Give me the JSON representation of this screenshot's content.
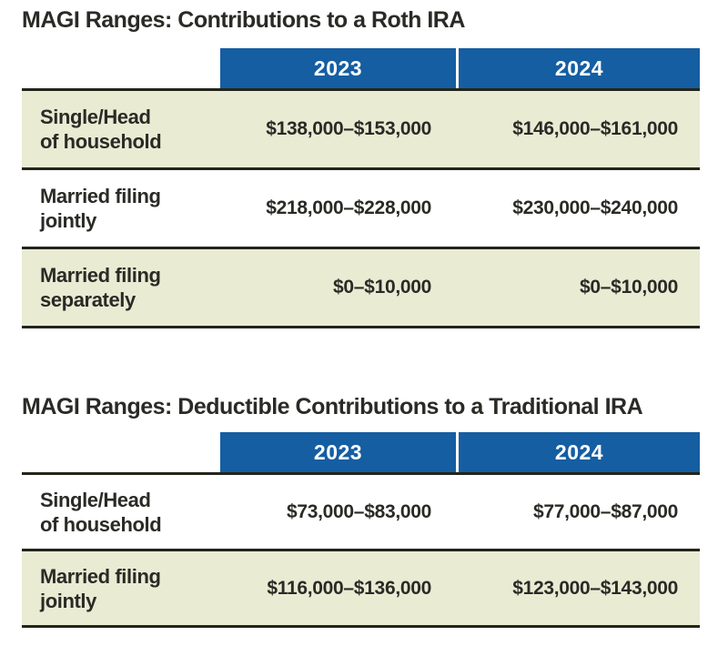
{
  "colors": {
    "header_blue": "#155ea2",
    "row_shaded_olive": "#e9ebd3",
    "row_plain_white": "#ffffff",
    "rule_dark": "#23251b",
    "text_dark": "#2a2a26",
    "header_text": "#ffffff"
  },
  "chart_data": [
    {
      "type": "table",
      "title": "MAGI Ranges: Contributions to a Roth IRA",
      "columns": [
        "2023",
        "2024"
      ],
      "rows": [
        {
          "label": [
            "Single/Head",
            "of household"
          ],
          "values": [
            "$138,000–$153,000",
            "$146,000–$161,000"
          ],
          "shaded": true
        },
        {
          "label": [
            "Married filing",
            "jointly"
          ],
          "values": [
            "$218,000–$228,000",
            "$230,000–$240,000"
          ],
          "shaded": false
        },
        {
          "label": [
            "Married filing",
            "separately"
          ],
          "values": [
            "$0–$10,000",
            "$0–$10,000"
          ],
          "shaded": true
        }
      ],
      "layout_hints": {
        "header_fill": "#155ea2",
        "shaded_row_fill": "#e9ebd3",
        "values_alignment": "right",
        "grid": "horizontal rules only"
      }
    },
    {
      "type": "table",
      "title": "MAGI Ranges: Deductible Contributions to a Traditional IRA",
      "columns": [
        "2023",
        "2024"
      ],
      "rows": [
        {
          "label": [
            "Single/Head",
            "of household"
          ],
          "values": [
            "$73,000–$83,000",
            "$77,000–$87,000"
          ],
          "shaded": false
        },
        {
          "label": [
            "Married filing",
            "jointly"
          ],
          "values": [
            "$116,000–$136,000",
            "$123,000–$143,000"
          ],
          "shaded": true
        }
      ],
      "layout_hints": {
        "header_fill": "#155ea2",
        "shaded_row_fill": "#e9ebd3",
        "values_alignment": "right",
        "grid": "horizontal rules only"
      }
    }
  ]
}
